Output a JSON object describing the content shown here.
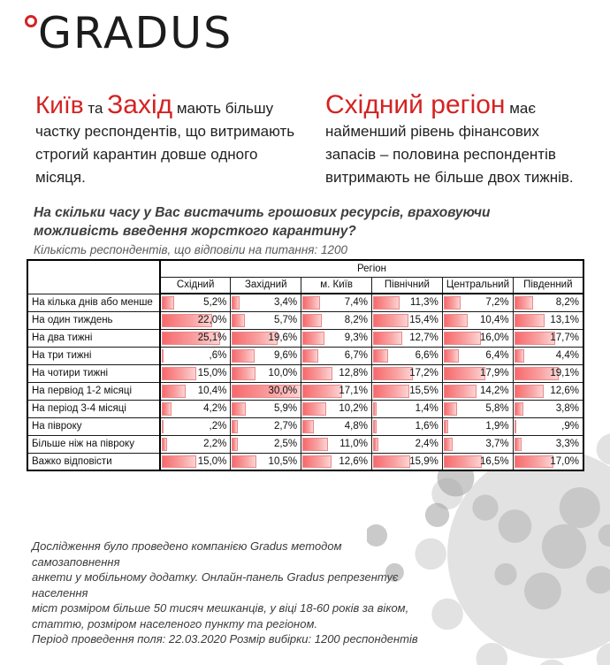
{
  "logo": {
    "brand": "GRADUS"
  },
  "headline_left": {
    "kyiv": "Київ",
    "ta": "та",
    "zakhid": "Захід",
    "tail": "мають більшу",
    "line2": "частку респондентів, що витримають",
    "line3": "строгий карантин довше одного",
    "line4": "місяця."
  },
  "headline_right": {
    "red": "Східний регіон",
    "tail": "має",
    "line2": "найменший рівень фінансових",
    "line3": "запасів – половина респондентів",
    "line4": "витримають не більше двох тижнів."
  },
  "question": {
    "line1": "На скільки часу у Вас вистачить грошових ресурсів, враховуючи",
    "line2": "можливість введення жорсткого карантину?",
    "subtitle": "Кількість респондентів, що відповіли на питання: 1200"
  },
  "table": {
    "region_header": "Регіон",
    "columns": [
      "Східний",
      "Західний",
      "м. Київ",
      "Північний",
      "Центральний",
      "Південний"
    ],
    "bar_max": 30,
    "rows": [
      {
        "label": "На кілька днів або менше",
        "values": [
          "5,2%",
          "3,4%",
          "7,4%",
          "11,3%",
          "7,2%",
          "8,2%"
        ],
        "nums": [
          5.2,
          3.4,
          7.4,
          11.3,
          7.2,
          8.2
        ]
      },
      {
        "label": "На один тиждень",
        "values": [
          "22,0%",
          "5,7%",
          "8,2%",
          "15,4%",
          "10,4%",
          "13,1%"
        ],
        "nums": [
          22.0,
          5.7,
          8.2,
          15.4,
          10.4,
          13.1
        ]
      },
      {
        "label": "На два тижні",
        "values": [
          "25,1%",
          "19,6%",
          "9,3%",
          "12,7%",
          "16,0%",
          "17,7%"
        ],
        "nums": [
          25.1,
          19.6,
          9.3,
          12.7,
          16.0,
          17.7
        ]
      },
      {
        "label": "На три тижні",
        "values": [
          ",6%",
          "9,6%",
          "6,7%",
          "6,6%",
          "6,4%",
          "4,4%"
        ],
        "nums": [
          0.6,
          9.6,
          6.7,
          6.6,
          6.4,
          4.4
        ]
      },
      {
        "label": "На чотири тижні",
        "values": [
          "15,0%",
          "10,0%",
          "12,8%",
          "17,2%",
          "17,9%",
          "19,1%"
        ],
        "nums": [
          15.0,
          10.0,
          12.8,
          17.2,
          17.9,
          19.1
        ]
      },
      {
        "label": "На первіод 1-2 місяці",
        "values": [
          "10,4%",
          "30,0%",
          "17,1%",
          "15,5%",
          "14,2%",
          "12,6%"
        ],
        "nums": [
          10.4,
          30.0,
          17.1,
          15.5,
          14.2,
          12.6
        ]
      },
      {
        "label": "На період 3-4 місяці",
        "values": [
          "4,2%",
          "5,9%",
          "10,2%",
          "1,4%",
          "5,8%",
          "3,8%"
        ],
        "nums": [
          4.2,
          5.9,
          10.2,
          1.4,
          5.8,
          3.8
        ]
      },
      {
        "label": "На півроку",
        "values": [
          ",2%",
          "2,7%",
          "4,8%",
          "1,6%",
          "1,9%",
          ",9%"
        ],
        "nums": [
          0.2,
          2.7,
          4.8,
          1.6,
          1.9,
          0.9
        ]
      },
      {
        "label": "Більше ніж на півроку",
        "values": [
          "2,2%",
          "2,5%",
          "11,0%",
          "2,4%",
          "3,7%",
          "3,3%"
        ],
        "nums": [
          2.2,
          2.5,
          11.0,
          2.4,
          3.7,
          3.3
        ]
      },
      {
        "label": "Важко відповісти",
        "values": [
          "15,0%",
          "10,5%",
          "12,6%",
          "15,9%",
          "16,5%",
          "17,0%"
        ],
        "nums": [
          15.0,
          10.5,
          12.6,
          15.9,
          16.5,
          17.0
        ]
      }
    ]
  },
  "footer": {
    "line1": "Дослідження було проведено компанією Gradus методом самозаповнення",
    "line2": "анкети у мобільному додатку. Онлайн-панель Gradus репрезентує населення",
    "line3": "міст розміром більше 50 тисяч мешканців, у віці 18-60 років за віком,",
    "line4": "статтю, розміром населеного пункту та регіоном.",
    "line5": "Період проведення поля: 22.03.2020 Розмір вибірки: 1200 респондентів"
  },
  "colors": {
    "accent_red": "#d42322",
    "bar_fill_start": "#f7696c",
    "bar_fill_mid": "#f9a3a3",
    "bar_fill_end": "#fcd4d3",
    "bar_border": "#e98a8c",
    "watermark_gray": "#c7c7c7"
  },
  "chart_data": {
    "type": "table",
    "title": "На скільки часу у Вас вистачить грошових ресурсів, враховуючи можливість введення жорсткого карантину?",
    "note": "Кількість респондентів, що відповіли на питання: 1200",
    "unit": "%",
    "group_header": "Регіон",
    "categories": [
      "На кілька днів або менше",
      "На один тиждень",
      "На два тижні",
      "На три тижні",
      "На чотири тижні",
      "На первіод 1-2 місяці",
      "На період 3-4 місяці",
      "На півроку",
      "Більше ніж на півроку",
      "Важко відповісти"
    ],
    "series": [
      {
        "name": "Східний",
        "values": [
          5.2,
          22.0,
          25.1,
          0.6,
          15.0,
          10.4,
          4.2,
          0.2,
          2.2,
          15.0
        ]
      },
      {
        "name": "Західний",
        "values": [
          3.4,
          5.7,
          19.6,
          9.6,
          10.0,
          30.0,
          5.9,
          2.7,
          2.5,
          10.5
        ]
      },
      {
        "name": "м. Київ",
        "values": [
          7.4,
          8.2,
          9.3,
          6.7,
          12.8,
          17.1,
          10.2,
          4.8,
          11.0,
          12.6
        ]
      },
      {
        "name": "Північний",
        "values": [
          11.3,
          15.4,
          12.7,
          6.6,
          17.2,
          15.5,
          1.4,
          1.6,
          2.4,
          15.9
        ]
      },
      {
        "name": "Центральний",
        "values": [
          7.2,
          10.4,
          16.0,
          6.4,
          17.9,
          14.2,
          5.8,
          1.9,
          3.7,
          16.5
        ]
      },
      {
        "name": "Південний",
        "values": [
          8.2,
          13.1,
          17.7,
          4.4,
          19.1,
          12.6,
          3.8,
          0.9,
          3.3,
          17.0
        ]
      }
    ],
    "layout_hints": {
      "data_bars": true,
      "bar_scale_max": 30,
      "values_shown_as_labels": true
    }
  }
}
